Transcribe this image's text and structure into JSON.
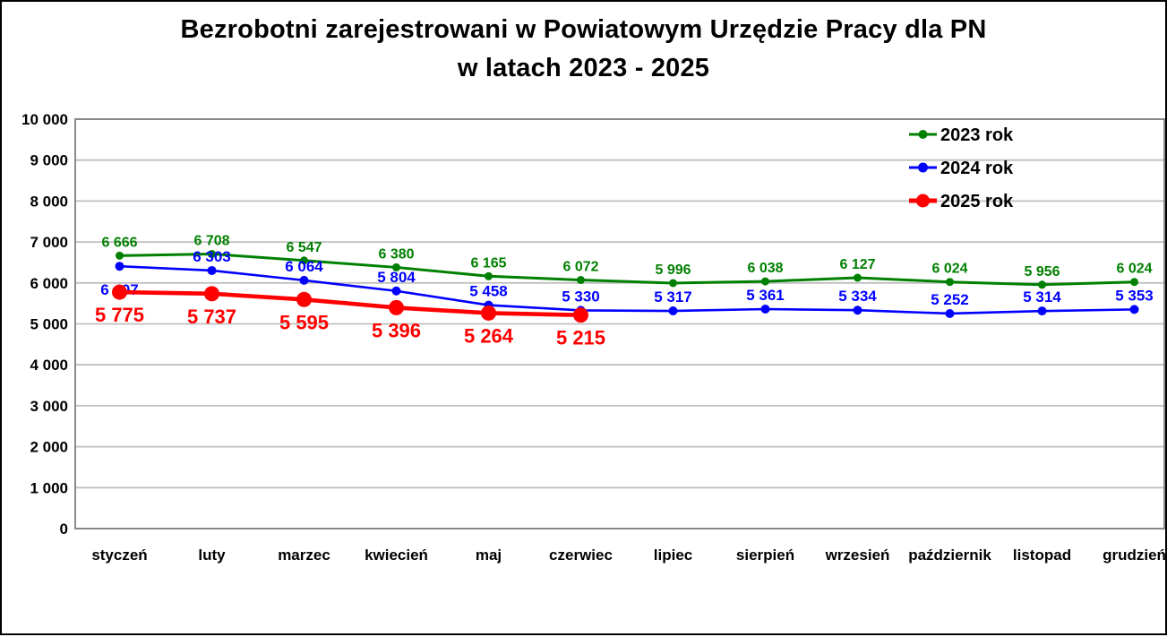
{
  "title": {
    "line1": "Bezrobotni zarejestrowani w Powiatowym Urzędzie Pracy dla PN",
    "line2": "w latach 2023 - 2025"
  },
  "chart_data": {
    "type": "line",
    "title": "Bezrobotni zarejestrowani w Powiatowym Urzędzie Pracy dla PN w latach 2023 - 2025",
    "categories": [
      "styczeń",
      "luty",
      "marzec",
      "kwiecień",
      "maj",
      "czerwiec",
      "lipiec",
      "sierpień",
      "wrzesień",
      "październik",
      "listopad",
      "grudzień"
    ],
    "series": [
      {
        "name": "2023 rok",
        "color": "#008000",
        "values": [
          6666,
          6708,
          6547,
          6380,
          6165,
          6072,
          5996,
          6038,
          6127,
          6024,
          5956,
          6024
        ]
      },
      {
        "name": "2024 rok",
        "color": "#0000FF",
        "values": [
          6407,
          6303,
          6064,
          5804,
          5458,
          5330,
          5317,
          5361,
          5334,
          5252,
          5314,
          5353
        ]
      },
      {
        "name": "2025 rok",
        "color": "#FF0000",
        "values": [
          5775,
          5737,
          5595,
          5396,
          5264,
          5215
        ]
      }
    ],
    "ylabel": "",
    "xlabel": "",
    "ylim": [
      0,
      10000
    ],
    "y_tick_step": 1000,
    "y_tick_labels": [
      "0",
      "1 000",
      "2 000",
      "3 000",
      "4 000",
      "5 000",
      "6 000",
      "7 000",
      "8 000",
      "9 000",
      "10 000"
    ],
    "grid": "horizontal-only",
    "data_labels": "on",
    "number_format": "space-thousands",
    "legend_position": "top-right-inside",
    "colors": {
      "gridline": "#BFBFBF",
      "plot_border": "#7F7F7F",
      "text": "#000000",
      "background": "#FFFFFF",
      "outer_border": "#000000"
    }
  }
}
